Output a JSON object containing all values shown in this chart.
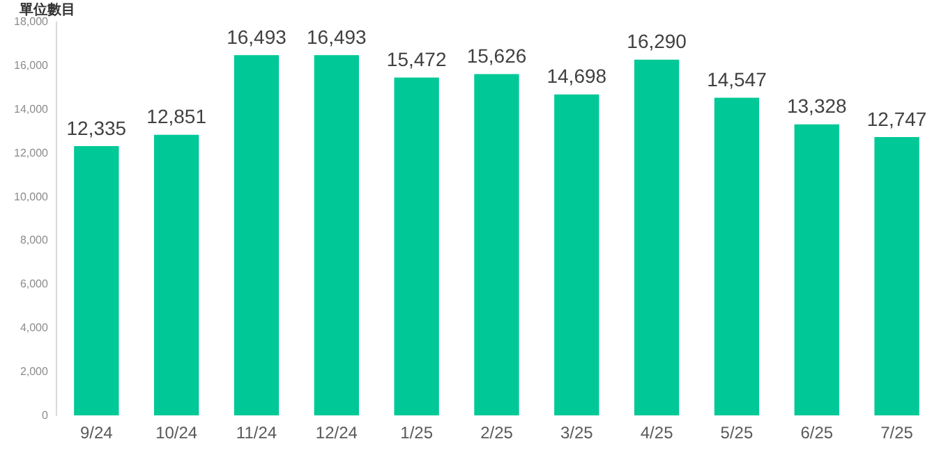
{
  "chart_data": {
    "type": "bar",
    "ylabel": "單位數目",
    "categories": [
      "9/24",
      "10/24",
      "11/24",
      "12/24",
      "1/25",
      "2/25",
      "3/25",
      "4/25",
      "5/25",
      "6/25",
      "7/25"
    ],
    "values": [
      12335,
      12851,
      16493,
      16493,
      15472,
      15626,
      14698,
      16290,
      14547,
      13328,
      12747
    ],
    "color": "#00c896",
    "value_labels": [
      "12,335",
      "12,851",
      "16,493",
      "16,493",
      "15,472",
      "15,626",
      "14,698",
      "16,290",
      "14,547",
      "13,328",
      "12,747"
    ],
    "ylim": [
      0,
      18000
    ],
    "yticks": [
      0,
      {
        "value": 2000,
        "label": "2,000"
      },
      {
        "value": 4000,
        "label": "4,000"
      },
      {
        "value": 6000,
        "label": "6,000"
      },
      {
        "value": 8000,
        "label": "8,000"
      },
      {
        "value": 10000,
        "label": "10,000"
      },
      {
        "value": 12000,
        "label": "12,000"
      },
      {
        "value": 14000,
        "label": "14,000"
      },
      {
        "value": 16000,
        "label": "16,000"
      },
      {
        "value": 18000,
        "label": "18,000"
      }
    ],
    "grid": false,
    "legend": false
  }
}
